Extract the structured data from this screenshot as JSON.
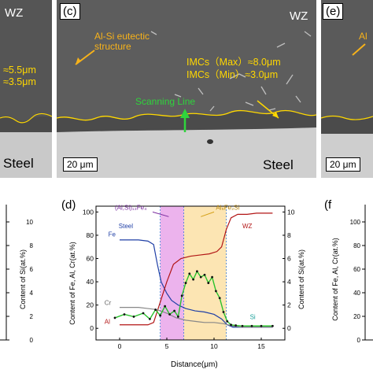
{
  "panels": {
    "c": {
      "label": "(c)",
      "zone": "WZ",
      "base": "Steel",
      "eutectic": "Al-Si eutectic\nstructure",
      "imc_max": "IMCs（Max）≈8.0μm",
      "imc_min": "IMCs（Min）≈3.0μm",
      "scan": "Scanning Line",
      "scale": "20 μm"
    },
    "a_partial": {
      "zone": "WZ",
      "base": "Steel",
      "imc_max": "≈5.5μm",
      "imc_min": "≈3.5μm"
    },
    "e_partial": {
      "label": "(e)",
      "base": "Steel",
      "scale": "20 μm",
      "text": "Al"
    },
    "b_partial": {
      "ylabel": "Content of Si(at.%)",
      "yticks": [
        "10",
        "8",
        "6",
        "4",
        "2",
        "0"
      ]
    },
    "f_partial": {
      "label": "(f",
      "ylabel": "Content of Fe, Al, Cr(at.%)",
      "yticks": [
        "100",
        "80",
        "60",
        "40",
        "20",
        "0"
      ]
    }
  },
  "chart_data": {
    "type": "line",
    "label": "(d)",
    "xlabel": "Distance(μm)",
    "ylabel_left": "Content of Fe, Al, Cr(at.%)",
    "ylabel_right": "Content of Si(at.%)",
    "xlim": [
      -2.5,
      17.5
    ],
    "ylim_left": [
      -10,
      105
    ],
    "ylim_right": [
      -1,
      10.5
    ],
    "xticks": [
      0,
      5,
      10,
      15
    ],
    "yticks_left": [
      0,
      20,
      40,
      60,
      80,
      100
    ],
    "yticks_right": [
      0,
      2,
      4,
      6,
      8,
      10
    ],
    "regions": [
      {
        "name": "(Al,Si)13Fe4",
        "x": [
          4.3,
          6.8
        ],
        "color": "#e9a6ea"
      },
      {
        "name": "Al5Fe2Si",
        "x": [
          6.8,
          11.3
        ],
        "color": "#fbe0a6"
      }
    ],
    "annotations": [
      "Steel",
      "WZ",
      "Fe",
      "Cr",
      "Al",
      "Si",
      "(Al,Si)₁₃Fe₄",
      "Al₅Fe₂Si"
    ],
    "series": [
      {
        "name": "Fe",
        "color": "#1f3fa6",
        "x": [
          0,
          1,
          2,
          3,
          3.6,
          4.0,
          4.4,
          5.0,
          5.5,
          6.2,
          7,
          8,
          9,
          10,
          10.8,
          11.4,
          12,
          13,
          14,
          15,
          16.2
        ],
        "y": [
          76,
          76,
          76,
          75,
          72,
          55,
          40,
          30,
          24,
          20,
          17,
          15,
          14,
          12,
          8,
          3,
          1,
          1,
          1,
          1,
          1
        ]
      },
      {
        "name": "Al",
        "color": "#b21515",
        "x": [
          0,
          1,
          2,
          3,
          3.6,
          4.2,
          5.0,
          5.7,
          6.5,
          7.5,
          8.5,
          9.5,
          10.3,
          10.8,
          11.3,
          11.8,
          12.5,
          13.5,
          14.5,
          15.5,
          16.2
        ],
        "y": [
          3,
          3,
          3,
          3,
          5,
          20,
          40,
          55,
          60,
          62,
          63,
          64,
          66,
          70,
          85,
          95,
          98,
          98,
          99,
          99,
          99
        ]
      },
      {
        "name": "Cr",
        "color": "#888888",
        "x": [
          0,
          1,
          2,
          3,
          4,
          5,
          6,
          7,
          8,
          9,
          10,
          11,
          12,
          13,
          14,
          15,
          16.2
        ],
        "y": [
          18,
          18,
          18,
          17,
          16,
          13,
          9,
          7,
          6,
          5,
          5,
          4,
          2,
          1,
          1,
          1,
          1
        ]
      },
      {
        "name": "Si",
        "color": "#29c22b",
        "x": [
          -0.5,
          0.5,
          1.5,
          2.5,
          3.2,
          3.8,
          4.3,
          4.8,
          5.3,
          5.8,
          6.2,
          6.6,
          7.0,
          7.4,
          7.8,
          8.2,
          8.6,
          9.0,
          9.4,
          9.8,
          10.2,
          10.6,
          11.0,
          11.4,
          11.8,
          12.3,
          13,
          14,
          15,
          16.2
        ],
        "y": [
          0.9,
          1.2,
          1.0,
          1.3,
          0.8,
          1.6,
          1.1,
          1.9,
          1.2,
          1.5,
          1.0,
          2.8,
          3.9,
          4.7,
          4.2,
          4.9,
          4.4,
          4.6,
          3.9,
          4.4,
          3.2,
          2.6,
          1.4,
          0.6,
          0.3,
          0.25,
          0.2,
          0.2,
          0.2,
          0.2
        ]
      }
    ]
  }
}
